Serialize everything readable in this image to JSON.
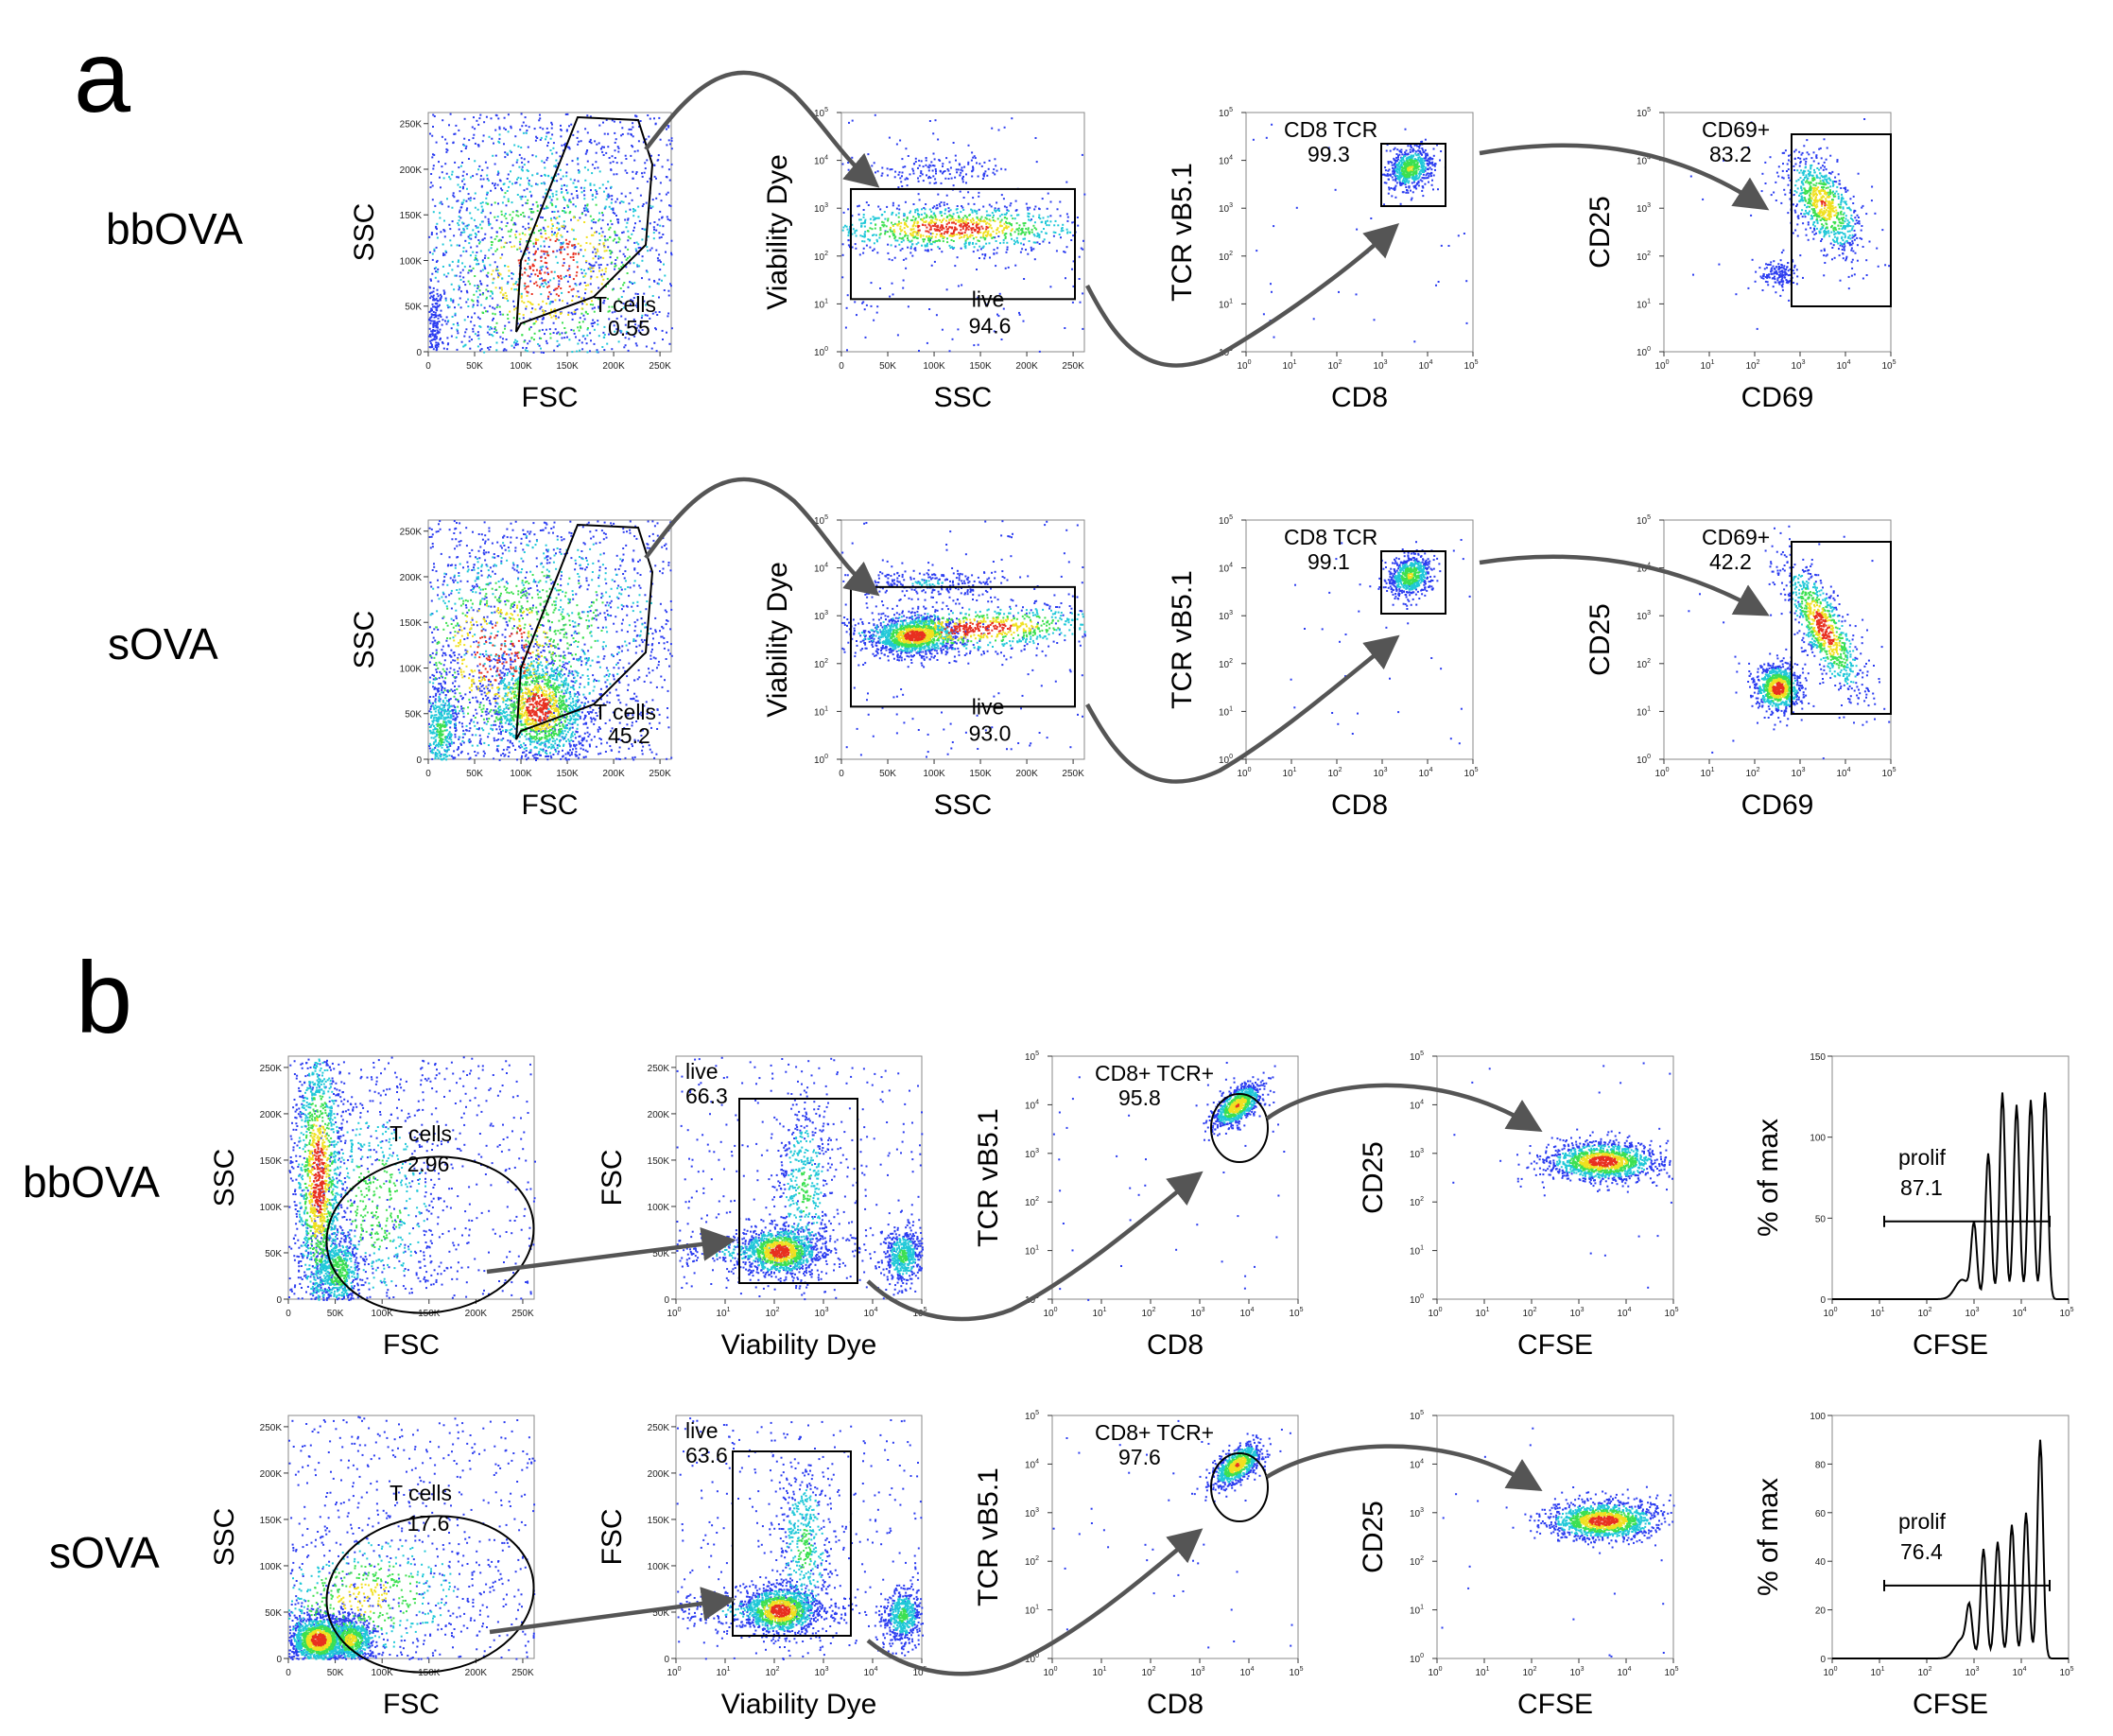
{
  "figure": {
    "panels": [
      {
        "letter": "a",
        "rows": [
          {
            "label": "bbOVA",
            "plots": [
              {
                "xlabel": "FSC",
                "ylabel": "SSC",
                "gate": {
                  "label": "T cells",
                  "value": "0.55"
                }
              },
              {
                "xlabel": "SSC",
                "ylabel": "Viability Dye",
                "gate": {
                  "label": "live",
                  "value": "94.6"
                }
              },
              {
                "xlabel": "CD8",
                "ylabel": "TCR vB5.1",
                "gate": {
                  "label": "CD8 TCR",
                  "value": "99.3"
                }
              },
              {
                "xlabel": "CD69",
                "ylabel": "CD25",
                "gate": {
                  "label": "CD69+",
                  "value": "83.2"
                }
              }
            ]
          },
          {
            "label": "sOVA",
            "plots": [
              {
                "xlabel": "FSC",
                "ylabel": "SSC",
                "gate": {
                  "label": "T cells",
                  "value": "45.2"
                }
              },
              {
                "xlabel": "SSC",
                "ylabel": "Viability Dye",
                "gate": {
                  "label": "live",
                  "value": "93.0"
                }
              },
              {
                "xlabel": "CD8",
                "ylabel": "TCR vB5.1",
                "gate": {
                  "label": "CD8 TCR",
                  "value": "99.1"
                }
              },
              {
                "xlabel": "CD69",
                "ylabel": "CD25",
                "gate": {
                  "label": "CD69+",
                  "value": "42.2"
                }
              }
            ]
          }
        ]
      },
      {
        "letter": "b",
        "rows": [
          {
            "label": "bbOVA",
            "plots": [
              {
                "xlabel": "FSC",
                "ylabel": "SSC",
                "gate": {
                  "label": "T cells",
                  "value": "2.96"
                }
              },
              {
                "xlabel": "Viability Dye",
                "ylabel": "FSC",
                "gate": {
                  "label": "live",
                  "value": "66.3"
                }
              },
              {
                "xlabel": "CD8",
                "ylabel": "TCR vB5.1",
                "gate": {
                  "label": "CD8+ TCR+",
                  "value": "95.8"
                }
              },
              {
                "xlabel": "CFSE",
                "ylabel": "CD25"
              },
              {
                "xlabel": "CFSE",
                "ylabel": "% of max",
                "gate": {
                  "label": "prolif",
                  "value": "87.1"
                }
              }
            ]
          },
          {
            "label": "sOVA",
            "plots": [
              {
                "xlabel": "FSC",
                "ylabel": "SSC",
                "gate": {
                  "label": "T cells",
                  "value": "17.6"
                }
              },
              {
                "xlabel": "Viability Dye",
                "ylabel": "FSC",
                "gate": {
                  "label": "live",
                  "value": "63.6"
                }
              },
              {
                "xlabel": "CD8",
                "ylabel": "TCR vB5.1",
                "gate": {
                  "label": "CD8+ TCR+",
                  "value": "97.6"
                }
              },
              {
                "xlabel": "CFSE",
                "ylabel": "CD25"
              },
              {
                "xlabel": "CFSE",
                "ylabel": "% of max",
                "gate": {
                  "label": "prolif",
                  "value": "76.4"
                }
              }
            ]
          }
        ]
      }
    ]
  },
  "chart_data": [
    {
      "type": "scatter",
      "panel": "a",
      "sample": "bbOVA",
      "xlabel": "FSC",
      "ylabel": "SSC",
      "xlim": [
        0,
        262144
      ],
      "ylim": [
        0,
        262144
      ],
      "xticks": [
        "0",
        "50K",
        "100K",
        "150K",
        "200K",
        "250K"
      ],
      "yticks": [
        "0",
        "50K",
        "100K",
        "150K",
        "200K",
        "250K"
      ],
      "gates": [
        {
          "label": "T cells",
          "value": 0.55
        }
      ]
    },
    {
      "type": "scatter",
      "panel": "a",
      "sample": "bbOVA",
      "xlabel": "SSC",
      "ylabel": "Viability Dye",
      "xscale": "linear",
      "yscale": "log",
      "xlim": [
        0,
        262144
      ],
      "ylim": [
        1,
        100000
      ],
      "gates": [
        {
          "label": "live",
          "value": 94.6
        }
      ]
    },
    {
      "type": "scatter",
      "panel": "a",
      "sample": "bbOVA",
      "xlabel": "CD8",
      "ylabel": "TCR vB5.1",
      "xscale": "log",
      "yscale": "log",
      "xlim": [
        1,
        100000
      ],
      "ylim": [
        1,
        100000
      ],
      "gates": [
        {
          "label": "CD8 TCR",
          "value": 99.3
        }
      ]
    },
    {
      "type": "scatter",
      "panel": "a",
      "sample": "bbOVA",
      "xlabel": "CD69",
      "ylabel": "CD25",
      "xscale": "log",
      "yscale": "log",
      "xlim": [
        1,
        100000
      ],
      "ylim": [
        1,
        100000
      ],
      "gates": [
        {
          "label": "CD69+",
          "value": 83.2
        }
      ]
    },
    {
      "type": "scatter",
      "panel": "a",
      "sample": "sOVA",
      "xlabel": "FSC",
      "ylabel": "SSC",
      "xlim": [
        0,
        262144
      ],
      "ylim": [
        0,
        262144
      ],
      "gates": [
        {
          "label": "T cells",
          "value": 45.2
        }
      ]
    },
    {
      "type": "scatter",
      "panel": "a",
      "sample": "sOVA",
      "xlabel": "SSC",
      "ylabel": "Viability Dye",
      "xscale": "linear",
      "yscale": "log",
      "gates": [
        {
          "label": "live",
          "value": 93.0
        }
      ]
    },
    {
      "type": "scatter",
      "panel": "a",
      "sample": "sOVA",
      "xlabel": "CD8",
      "ylabel": "TCR vB5.1",
      "xscale": "log",
      "yscale": "log",
      "gates": [
        {
          "label": "CD8 TCR",
          "value": 99.1
        }
      ]
    },
    {
      "type": "scatter",
      "panel": "a",
      "sample": "sOVA",
      "xlabel": "CD69",
      "ylabel": "CD25",
      "xscale": "log",
      "yscale": "log",
      "gates": [
        {
          "label": "CD69+",
          "value": 42.2
        }
      ]
    },
    {
      "type": "scatter",
      "panel": "b",
      "sample": "bbOVA",
      "xlabel": "FSC",
      "ylabel": "SSC",
      "gates": [
        {
          "label": "T cells",
          "value": 2.96
        }
      ]
    },
    {
      "type": "scatter",
      "panel": "b",
      "sample": "bbOVA",
      "xlabel": "Viability Dye",
      "ylabel": "FSC",
      "xscale": "log",
      "yscale": "linear",
      "gates": [
        {
          "label": "live",
          "value": 66.3
        }
      ]
    },
    {
      "type": "scatter",
      "panel": "b",
      "sample": "bbOVA",
      "xlabel": "CD8",
      "ylabel": "TCR vB5.1",
      "xscale": "log",
      "yscale": "log",
      "gates": [
        {
          "label": "CD8+ TCR+",
          "value": 95.8
        }
      ]
    },
    {
      "type": "scatter",
      "panel": "b",
      "sample": "bbOVA",
      "xlabel": "CFSE",
      "ylabel": "CD25",
      "xscale": "log",
      "yscale": "log"
    },
    {
      "type": "line",
      "panel": "b",
      "sample": "bbOVA",
      "xlabel": "CFSE",
      "ylabel": "% of max",
      "xscale": "log",
      "ylim": [
        0,
        150
      ],
      "yticks": [
        "0",
        "50",
        "100",
        "150"
      ],
      "gates": [
        {
          "label": "prolif",
          "value": 87.1
        }
      ]
    },
    {
      "type": "scatter",
      "panel": "b",
      "sample": "sOVA",
      "xlabel": "FSC",
      "ylabel": "SSC",
      "gates": [
        {
          "label": "T cells",
          "value": 17.6
        }
      ]
    },
    {
      "type": "scatter",
      "panel": "b",
      "sample": "sOVA",
      "xlabel": "Viability Dye",
      "ylabel": "FSC",
      "xscale": "log",
      "yscale": "linear",
      "gates": [
        {
          "label": "live",
          "value": 63.6
        }
      ]
    },
    {
      "type": "scatter",
      "panel": "b",
      "sample": "sOVA",
      "xlabel": "CD8",
      "ylabel": "TCR vB5.1",
      "xscale": "log",
      "yscale": "log",
      "gates": [
        {
          "label": "CD8+ TCR+",
          "value": 97.6
        }
      ]
    },
    {
      "type": "scatter",
      "panel": "b",
      "sample": "sOVA",
      "xlabel": "CFSE",
      "ylabel": "CD25",
      "xscale": "log",
      "yscale": "log"
    },
    {
      "type": "line",
      "panel": "b",
      "sample": "sOVA",
      "xlabel": "CFSE",
      "ylabel": "% of max",
      "xscale": "log",
      "ylim": [
        0,
        100
      ],
      "yticks": [
        "0",
        "20",
        "40",
        "60",
        "80",
        "100"
      ],
      "gates": [
        {
          "label": "prolif",
          "value": 76.4
        }
      ]
    }
  ],
  "colors": {
    "density_low": "#2b3cf0",
    "density_mid": "#20c8d8",
    "density_mid2": "#3ce050",
    "density_high": "#f0e020",
    "density_max": "#e83020",
    "gate": "#000000",
    "arrow": "#555555"
  },
  "tick_sets": {
    "lin_k": [
      "0",
      "50K",
      "100K",
      "150K",
      "200K",
      "250K"
    ],
    "log_decades": [
      "0",
      "1",
      "2",
      "3",
      "4",
      "5"
    ],
    "hist_150": [
      "0",
      "50",
      "100",
      "150"
    ],
    "hist_100": [
      "0",
      "20",
      "40",
      "60",
      "80",
      "100"
    ]
  }
}
